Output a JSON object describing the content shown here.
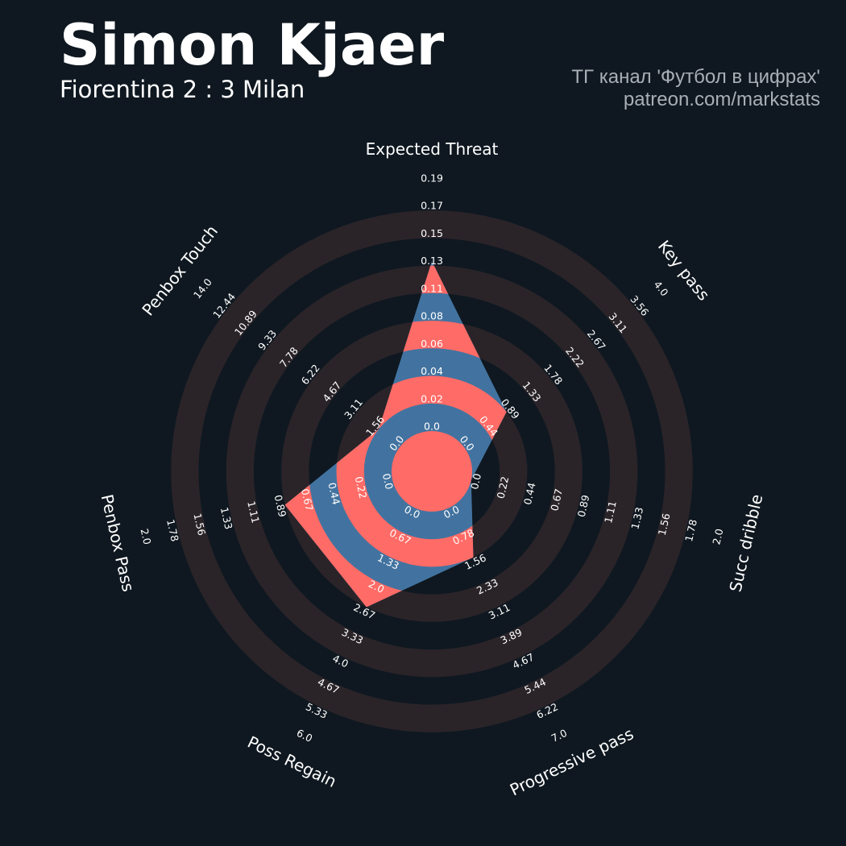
{
  "header": {
    "title": "Simon Kjaer",
    "subtitle": "Fiorentina 2 : 3 Milan",
    "credit_line1": "ТГ канал 'Футбол в цифрах'",
    "credit_line2": "patreon.com/markstats"
  },
  "colors": {
    "background": "#0f1820",
    "ring_background": "#2a2429",
    "polygon_primary": "#ff6b66",
    "polygon_secondary": "#4273a0",
    "text": "#ffffff",
    "credit_text": "#a9afb6"
  },
  "chart_data": {
    "type": "radar",
    "params": [
      "Expected Threat",
      "Key pass",
      "Succ dribble",
      "Progressive pass",
      "Poss Regain",
      "Penbox Pass",
      "Penbox Touch"
    ],
    "ranges": [
      [
        0.0,
        0.19
      ],
      [
        0.0,
        4.0
      ],
      [
        0.0,
        2.0
      ],
      [
        0.0,
        7.0
      ],
      [
        0.0,
        6.0
      ],
      [
        0.0,
        2.0
      ],
      [
        0.0,
        14.0
      ]
    ],
    "tick_labels": [
      [
        "0.0",
        "0.02",
        "0.04",
        "0.06",
        "0.08",
        "0.11",
        "0.13",
        "0.15",
        "0.17",
        "0.19"
      ],
      [
        "0.0",
        "0.44",
        "0.89",
        "1.33",
        "1.78",
        "2.22",
        "2.67",
        "3.11",
        "3.56",
        "4.0"
      ],
      [
        "0.0",
        "0.22",
        "0.44",
        "0.67",
        "0.89",
        "1.11",
        "1.33",
        "1.56",
        "1.78",
        "2.0"
      ],
      [
        "0.0",
        "0.78",
        "1.56",
        "2.33",
        "3.11",
        "3.89",
        "4.67",
        "5.44",
        "6.22",
        "7.0"
      ],
      [
        "0.0",
        "0.67",
        "1.33",
        "2.0",
        "2.67",
        "3.33",
        "4.0",
        "4.67",
        "5.33",
        "6.0"
      ],
      [
        "0.0",
        "0.22",
        "0.44",
        "0.67",
        "0.89",
        "1.11",
        "1.33",
        "1.56",
        "1.78",
        "2.0"
      ],
      [
        "0.0",
        "1.56",
        "3.11",
        "4.67",
        "6.22",
        "7.78",
        "9.33",
        "10.89",
        "12.44",
        "14.0"
      ]
    ],
    "values": [
      0.13,
      0.89,
      0.0,
      1.56,
      2.67,
      0.89,
      1.56
    ]
  }
}
